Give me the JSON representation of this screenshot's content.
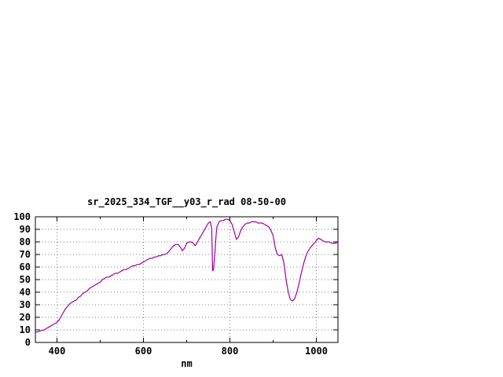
{
  "window": {
    "background": "#ffffff"
  },
  "chart_data": {
    "type": "line",
    "title": "sr_2025_334_TGF__y03_r_rad 08-50-00",
    "xlabel": "nm",
    "ylabel": "",
    "xlim": [
      350,
      1050
    ],
    "ylim": [
      0,
      100
    ],
    "x_major_ticks": [
      400,
      600,
      800,
      1000
    ],
    "x_minor_ticks": [
      500,
      700,
      900
    ],
    "y_ticks": [
      0,
      10,
      20,
      30,
      40,
      50,
      60,
      70,
      80,
      90,
      100
    ],
    "grid": true,
    "grid_color": "#808080",
    "border_color": "#000000",
    "line_color": "#a000a0",
    "legend_position": "none",
    "series": [
      {
        "name": "sr_2025_334_TGF__y03_r_rad",
        "points": [
          [
            350,
            8
          ],
          [
            355,
            8.5
          ],
          [
            360,
            9
          ],
          [
            365,
            9.5
          ],
          [
            370,
            10
          ],
          [
            375,
            11
          ],
          [
            380,
            12
          ],
          [
            385,
            13
          ],
          [
            390,
            14
          ],
          [
            395,
            15
          ],
          [
            400,
            16
          ],
          [
            405,
            18
          ],
          [
            410,
            21
          ],
          [
            415,
            24
          ],
          [
            420,
            27
          ],
          [
            425,
            29
          ],
          [
            430,
            31
          ],
          [
            435,
            32
          ],
          [
            440,
            33
          ],
          [
            445,
            34
          ],
          [
            450,
            36
          ],
          [
            455,
            37
          ],
          [
            460,
            39
          ],
          [
            465,
            40
          ],
          [
            470,
            41
          ],
          [
            475,
            43
          ],
          [
            480,
            44
          ],
          [
            485,
            45
          ],
          [
            490,
            46
          ],
          [
            495,
            47
          ],
          [
            500,
            48
          ],
          [
            505,
            50
          ],
          [
            510,
            51
          ],
          [
            515,
            52
          ],
          [
            520,
            52
          ],
          [
            525,
            53
          ],
          [
            530,
            54
          ],
          [
            535,
            55
          ],
          [
            540,
            55
          ],
          [
            545,
            56
          ],
          [
            550,
            57
          ],
          [
            555,
            58
          ],
          [
            560,
            58
          ],
          [
            565,
            59
          ],
          [
            570,
            60
          ],
          [
            575,
            61
          ],
          [
            580,
            61
          ],
          [
            585,
            62
          ],
          [
            590,
            62
          ],
          [
            595,
            63
          ],
          [
            600,
            64
          ],
          [
            605,
            65
          ],
          [
            610,
            66
          ],
          [
            615,
            67
          ],
          [
            620,
            67
          ],
          [
            625,
            68
          ],
          [
            630,
            68
          ],
          [
            635,
            69
          ],
          [
            640,
            69
          ],
          [
            645,
            70
          ],
          [
            650,
            70
          ],
          [
            655,
            71
          ],
          [
            660,
            73
          ],
          [
            665,
            75
          ],
          [
            670,
            77
          ],
          [
            675,
            78
          ],
          [
            680,
            78
          ],
          [
            685,
            76
          ],
          [
            690,
            73
          ],
          [
            695,
            75
          ],
          [
            700,
            79
          ],
          [
            705,
            80
          ],
          [
            710,
            80
          ],
          [
            715,
            79
          ],
          [
            720,
            77
          ],
          [
            725,
            80
          ],
          [
            730,
            83
          ],
          [
            735,
            86
          ],
          [
            740,
            89
          ],
          [
            745,
            92
          ],
          [
            750,
            95
          ],
          [
            755,
            96
          ],
          [
            758,
            90
          ],
          [
            760,
            57
          ],
          [
            762,
            58
          ],
          [
            765,
            70
          ],
          [
            768,
            85
          ],
          [
            770,
            92
          ],
          [
            775,
            96
          ],
          [
            780,
            97
          ],
          [
            785,
            97
          ],
          [
            790,
            98
          ],
          [
            795,
            98
          ],
          [
            800,
            97
          ],
          [
            805,
            94
          ],
          [
            810,
            88
          ],
          [
            815,
            82
          ],
          [
            820,
            84
          ],
          [
            825,
            89
          ],
          [
            830,
            92
          ],
          [
            835,
            94
          ],
          [
            840,
            95
          ],
          [
            845,
            95
          ],
          [
            850,
            96
          ],
          [
            855,
            96
          ],
          [
            860,
            96
          ],
          [
            865,
            95
          ],
          [
            870,
            95
          ],
          [
            875,
            95
          ],
          [
            880,
            94
          ],
          [
            885,
            93
          ],
          [
            890,
            92
          ],
          [
            895,
            89
          ],
          [
            900,
            85
          ],
          [
            905,
            75
          ],
          [
            910,
            70
          ],
          [
            915,
            69
          ],
          [
            920,
            70
          ],
          [
            925,
            63
          ],
          [
            930,
            50
          ],
          [
            935,
            40
          ],
          [
            940,
            34
          ],
          [
            945,
            33
          ],
          [
            950,
            35
          ],
          [
            955,
            40
          ],
          [
            960,
            47
          ],
          [
            965,
            55
          ],
          [
            970,
            62
          ],
          [
            975,
            68
          ],
          [
            980,
            72
          ],
          [
            985,
            75
          ],
          [
            990,
            77
          ],
          [
            995,
            79
          ],
          [
            1000,
            81
          ],
          [
            1005,
            83
          ],
          [
            1010,
            82
          ],
          [
            1015,
            81
          ],
          [
            1020,
            80
          ],
          [
            1025,
            80
          ],
          [
            1030,
            80
          ],
          [
            1035,
            79
          ],
          [
            1040,
            79
          ],
          [
            1045,
            79
          ],
          [
            1050,
            80
          ]
        ]
      }
    ]
  }
}
